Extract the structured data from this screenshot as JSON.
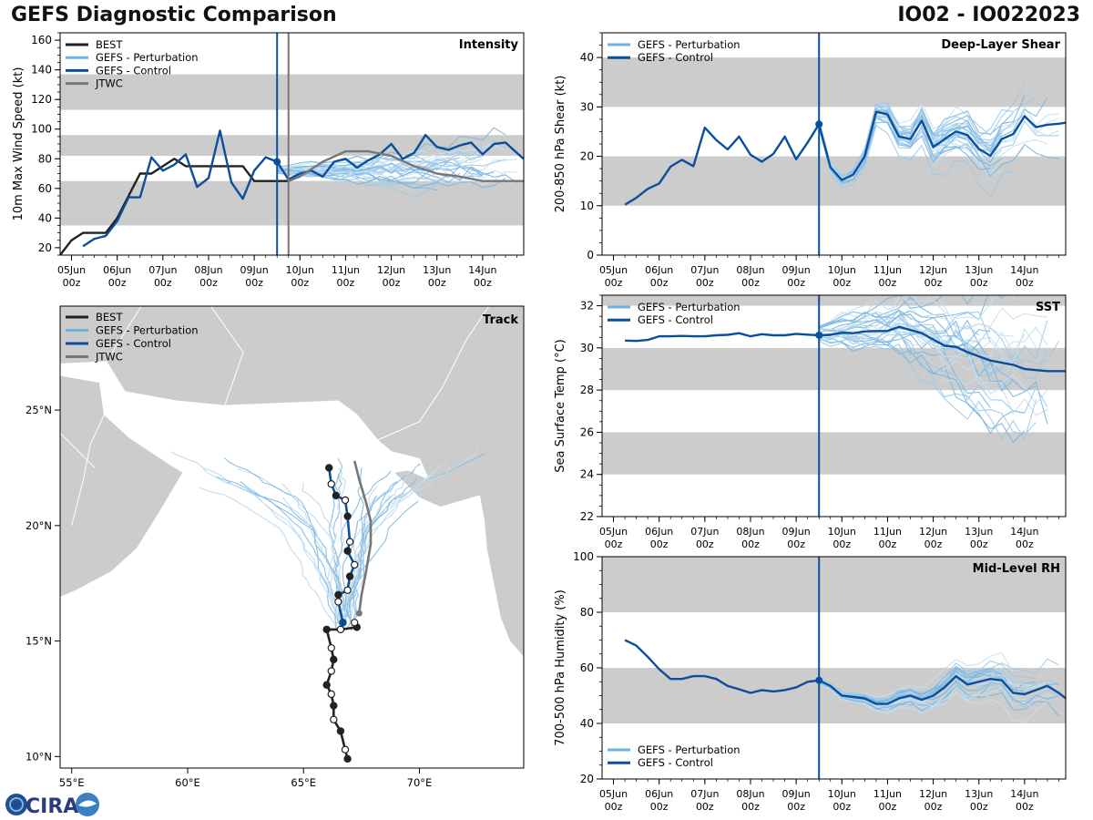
{
  "header": {
    "title": "GEFS Diagnostic Comparison",
    "storm": "IO02 - IO022023"
  },
  "logo": {
    "text": "CIRA"
  },
  "colors": {
    "best": "#222222",
    "perturbation": "#8ec1e0",
    "control": "#0b4f9c",
    "jtwc": "#777777",
    "band": "#cccccc",
    "land": "#cccccc"
  },
  "time_axis": {
    "ticks": [
      "05Jun",
      "06Jun",
      "07Jun",
      "08Jun",
      "09Jun",
      "10Jun",
      "11Jun",
      "12Jun",
      "13Jun",
      "14Jun"
    ],
    "subticks": "00z",
    "range_days": [
      4.75,
      14.9
    ],
    "init_day": 9.5
  },
  "chart_data": [
    {
      "id": "intensity",
      "type": "line",
      "title": "Intensity",
      "ylabel": "10m Max Wind Speed (kt)",
      "ylim": [
        15,
        165
      ],
      "yticks": [
        20,
        40,
        60,
        80,
        100,
        120,
        140,
        160
      ],
      "bands": [
        [
          35,
          65
        ],
        [
          82,
          96
        ],
        [
          113,
          137
        ]
      ],
      "legend": [
        "BEST",
        "GEFS - Perturbation",
        "GEFS - Control",
        "JTWC"
      ],
      "verticals": [
        9.5,
        9.75
      ],
      "series": [
        {
          "name": "BEST",
          "x": [
            4.75,
            5.0,
            5.25,
            5.5,
            5.75,
            6.0,
            6.25,
            6.5,
            6.75,
            7.0,
            7.25,
            7.5,
            7.75,
            8.0,
            8.25,
            8.5,
            8.75,
            9.0,
            9.25,
            9.5,
            9.75
          ],
          "y": [
            15,
            25,
            30,
            30,
            30,
            40,
            55,
            70,
            70,
            75,
            80,
            75,
            75,
            75,
            75,
            75,
            75,
            65,
            65,
            65,
            65
          ]
        },
        {
          "name": "GEFS - Control",
          "x": [
            5.25,
            5.5,
            5.75,
            6.0,
            6.25,
            6.5,
            6.75,
            7.0,
            7.25,
            7.5,
            7.75,
            8.0,
            8.25,
            8.5,
            8.75,
            9.0,
            9.25,
            9.5,
            9.75,
            10.0,
            10.25,
            10.5,
            10.75,
            11.0,
            11.25,
            11.5,
            11.75,
            12.0,
            12.25,
            12.5,
            12.75,
            13.0,
            13.25,
            13.5,
            13.75,
            14.0,
            14.25,
            14.5,
            14.75,
            14.9
          ],
          "y": [
            21,
            26,
            28,
            38,
            54,
            54,
            81,
            72,
            76,
            83,
            61,
            67,
            99,
            64,
            53,
            72,
            81,
            78,
            66,
            70,
            72,
            68,
            78,
            80,
            74,
            79,
            83,
            90,
            80,
            84,
            96,
            88,
            86,
            89,
            91,
            83,
            90,
            91,
            84,
            80
          ]
        },
        {
          "name": "JTWC",
          "x": [
            9.75,
            10.0,
            10.5,
            11.0,
            11.5,
            12.0,
            12.5,
            13.0,
            13.5,
            14.0,
            14.5,
            14.9
          ],
          "y": [
            65,
            68,
            78,
            85,
            85,
            82,
            75,
            70,
            68,
            65,
            65,
            65
          ]
        }
      ]
    },
    {
      "id": "shear",
      "type": "line",
      "title": "Deep-Layer Shear",
      "ylabel": "200-850 hPa Shear (kt)",
      "ylim": [
        0,
        45
      ],
      "yticks": [
        0,
        10,
        20,
        30,
        40
      ],
      "bands": [
        [
          10,
          20
        ],
        [
          30,
          40
        ]
      ],
      "legend": [
        "GEFS - Perturbation",
        "GEFS - Control"
      ],
      "verticals": [
        9.5
      ],
      "series": [
        {
          "name": "GEFS - Control",
          "x": [
            5.25,
            5.5,
            5.75,
            6.0,
            6.25,
            6.5,
            6.75,
            7.0,
            7.25,
            7.5,
            7.75,
            8.0,
            8.25,
            8.5,
            8.75,
            9.0,
            9.25,
            9.5,
            9.75,
            10.0,
            10.25,
            10.5,
            10.75,
            11.0,
            11.25,
            11.5,
            11.75,
            12.0,
            12.25,
            12.5,
            12.75,
            13.0,
            13.25,
            13.5,
            13.75,
            14.0,
            14.25,
            14.5,
            14.75,
            14.9
          ],
          "y": [
            10.2,
            11.6,
            13.4,
            14.5,
            17.9,
            19.3,
            18,
            25.8,
            23.3,
            21.4,
            24,
            20.3,
            18.9,
            20.5,
            24,
            19.4,
            22.8,
            26.5,
            17.8,
            15.2,
            16.3,
            20,
            29,
            28.5,
            24,
            23.5,
            27.2,
            21.9,
            23.5,
            25,
            24.3,
            21.5,
            20.1,
            23.5,
            24.5,
            28.1,
            25.9,
            26.4,
            26.6,
            26.8
          ]
        }
      ]
    },
    {
      "id": "sst",
      "type": "line",
      "title": "SST",
      "ylabel": "Sea Surface Temp (°C)",
      "ylim": [
        22,
        32.5
      ],
      "yticks": [
        22,
        24,
        26,
        28,
        30,
        32
      ],
      "bands": [
        [
          24,
          26
        ],
        [
          28,
          30
        ],
        [
          32,
          32.5
        ]
      ],
      "legend": [
        "GEFS - Perturbation",
        "GEFS - Control"
      ],
      "verticals": [
        9.5
      ],
      "series": [
        {
          "name": "GEFS - Control",
          "x": [
            5.25,
            5.5,
            5.75,
            6.0,
            6.25,
            6.5,
            6.75,
            7.0,
            7.25,
            7.5,
            7.75,
            8.0,
            8.25,
            8.5,
            8.75,
            9.0,
            9.25,
            9.5,
            9.75,
            10.0,
            10.25,
            10.5,
            10.75,
            11.0,
            11.25,
            11.5,
            11.75,
            12.0,
            12.25,
            12.5,
            12.75,
            13.0,
            13.25,
            13.5,
            13.75,
            14.0,
            14.25,
            14.5,
            14.75,
            14.9
          ],
          "y": [
            30.35,
            30.33,
            30.38,
            30.55,
            30.55,
            30.57,
            30.55,
            30.55,
            30.6,
            30.62,
            30.7,
            30.55,
            30.65,
            30.6,
            30.6,
            30.67,
            30.63,
            30.6,
            30.62,
            30.72,
            30.7,
            30.78,
            30.8,
            30.8,
            31.0,
            30.85,
            30.7,
            30.4,
            30.1,
            30.05,
            29.8,
            29.6,
            29.4,
            29.3,
            29.2,
            29.0,
            28.95,
            28.9,
            28.9,
            28.9
          ]
        }
      ]
    },
    {
      "id": "rh",
      "type": "line",
      "title": "Mid-Level RH",
      "ylabel": "700-500 hPa Humidity (%)",
      "ylim": [
        20,
        100
      ],
      "yticks": [
        20,
        40,
        60,
        80,
        100
      ],
      "bands": [
        [
          40,
          60
        ],
        [
          80,
          100
        ]
      ],
      "legend": [
        "GEFS - Perturbation",
        "GEFS - Control"
      ],
      "verticals": [
        9.5
      ],
      "series": [
        {
          "name": "GEFS - Control",
          "x": [
            5.25,
            5.5,
            5.75,
            6.0,
            6.25,
            6.5,
            6.75,
            7.0,
            7.25,
            7.5,
            7.75,
            8.0,
            8.25,
            8.5,
            8.75,
            9.0,
            9.25,
            9.5,
            9.75,
            10.0,
            10.25,
            10.5,
            10.75,
            11.0,
            11.25,
            11.5,
            11.75,
            12.0,
            12.25,
            12.5,
            12.75,
            13.0,
            13.25,
            13.5,
            13.75,
            14.0,
            14.25,
            14.5,
            14.75,
            14.9
          ],
          "y": [
            70,
            68,
            64,
            59.5,
            56,
            56,
            57,
            57,
            56,
            53.5,
            52.3,
            51,
            52,
            51.5,
            52,
            53,
            55,
            55.5,
            53.5,
            50,
            49.5,
            49,
            47,
            47,
            49,
            50,
            48.5,
            50,
            53,
            57,
            54,
            55,
            56,
            55.5,
            51,
            50.5,
            52,
            53.5,
            51,
            49
          ]
        }
      ]
    },
    {
      "id": "track",
      "type": "scatter",
      "title": "Track",
      "xlim": [
        54.5,
        74.5
      ],
      "ylim": [
        9.5,
        29.5
      ],
      "xticks": [
        "55°E",
        "60°E",
        "65°E",
        "70°E"
      ],
      "xtick_values": [
        55,
        60,
        65,
        70
      ],
      "yticks": [
        "10°N",
        "15°N",
        "20°N",
        "25°N"
      ],
      "ytick_values": [
        10,
        15,
        20,
        25
      ],
      "legend": [
        "BEST",
        "GEFS - Perturbation",
        "GEFS - Control",
        "JTWC"
      ],
      "series": [
        {
          "name": "BEST",
          "lon": [
            66.9,
            66.8,
            66.6,
            66.3,
            66.3,
            66.2,
            66.0,
            66.2,
            66.3,
            66.2,
            66.0,
            66.6,
            67.3,
            67.2
          ],
          "lat": [
            9.9,
            10.3,
            11.1,
            11.6,
            12.2,
            12.7,
            13.1,
            13.7,
            14.2,
            14.7,
            15.5,
            15.5,
            15.6,
            15.8
          ]
        },
        {
          "name": "GEFS - Control",
          "lon": [
            66.7,
            66.5,
            66.5,
            66.9,
            67.0,
            67.2,
            66.9,
            67.0,
            66.9,
            66.8,
            66.4,
            66.2,
            66.1
          ],
          "lat": [
            15.8,
            16.7,
            17.0,
            17.2,
            17.8,
            18.3,
            18.9,
            19.3,
            20.4,
            21.1,
            21.3,
            21.8,
            22.5
          ]
        },
        {
          "name": "JTWC",
          "lon": [
            67.4,
            67.5,
            67.7,
            67.9,
            67.9,
            67.7,
            67.4,
            67.2
          ],
          "lat": [
            16.2,
            17.0,
            18.0,
            19.2,
            20.2,
            21.0,
            22.0,
            22.8
          ]
        }
      ]
    }
  ]
}
